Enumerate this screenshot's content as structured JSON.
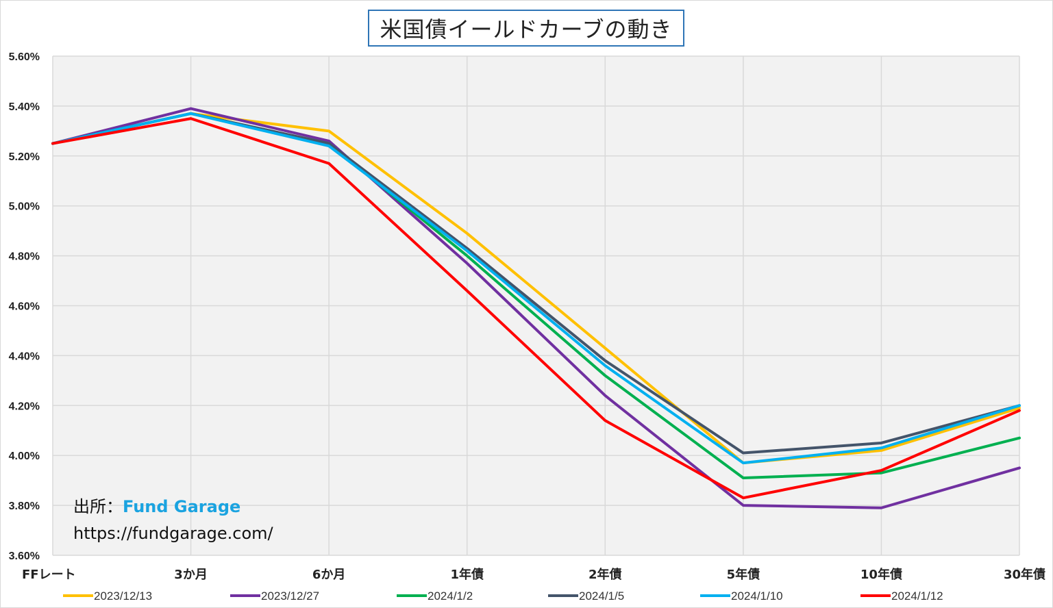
{
  "chart_data": {
    "type": "line",
    "title": "米国債イールドカーブの動き",
    "categories": [
      "FFレート",
      "3か月",
      "6か月",
      "1年債",
      "2年債",
      "5年債",
      "10年債",
      "30年債"
    ],
    "ylim": [
      3.6,
      5.6
    ],
    "yticks": [
      "5.60%",
      "5.40%",
      "5.20%",
      "5.00%",
      "4.80%",
      "4.60%",
      "4.40%",
      "4.20%",
      "4.00%",
      "3.80%",
      "3.60%"
    ],
    "ytick_values": [
      5.6,
      5.4,
      5.2,
      5.0,
      4.8,
      4.6,
      4.4,
      4.2,
      4.0,
      3.8,
      3.6
    ],
    "grid": true,
    "legend_position": "bottom",
    "series": [
      {
        "name": "2023/12/13",
        "color": "#ffc000",
        "values": [
          5.25,
          5.37,
          5.3,
          4.89,
          4.43,
          3.97,
          4.02,
          4.19
        ]
      },
      {
        "name": "2023/12/27",
        "color": "#7030a0",
        "values": [
          5.25,
          5.39,
          5.26,
          4.77,
          4.24,
          3.8,
          3.79,
          3.95
        ]
      },
      {
        "name": "2024/1/2",
        "color": "#00b050",
        "values": [
          5.25,
          5.37,
          5.25,
          4.8,
          4.32,
          3.91,
          3.93,
          4.07
        ]
      },
      {
        "name": "2024/1/5",
        "color": "#44546a",
        "values": [
          5.25,
          5.37,
          5.25,
          4.83,
          4.38,
          4.01,
          4.05,
          4.2
        ]
      },
      {
        "name": "2024/1/10",
        "color": "#00b0f0",
        "values": [
          5.25,
          5.37,
          5.24,
          4.82,
          4.36,
          3.97,
          4.03,
          4.2
        ]
      },
      {
        "name": "2024/1/12",
        "color": "#ff0000",
        "values": [
          5.25,
          5.35,
          5.17,
          4.66,
          4.14,
          3.83,
          3.94,
          4.18
        ]
      }
    ]
  },
  "source": {
    "label": "出所：",
    "name": "Fund Garage",
    "url": "https://fundgarage.com/"
  }
}
